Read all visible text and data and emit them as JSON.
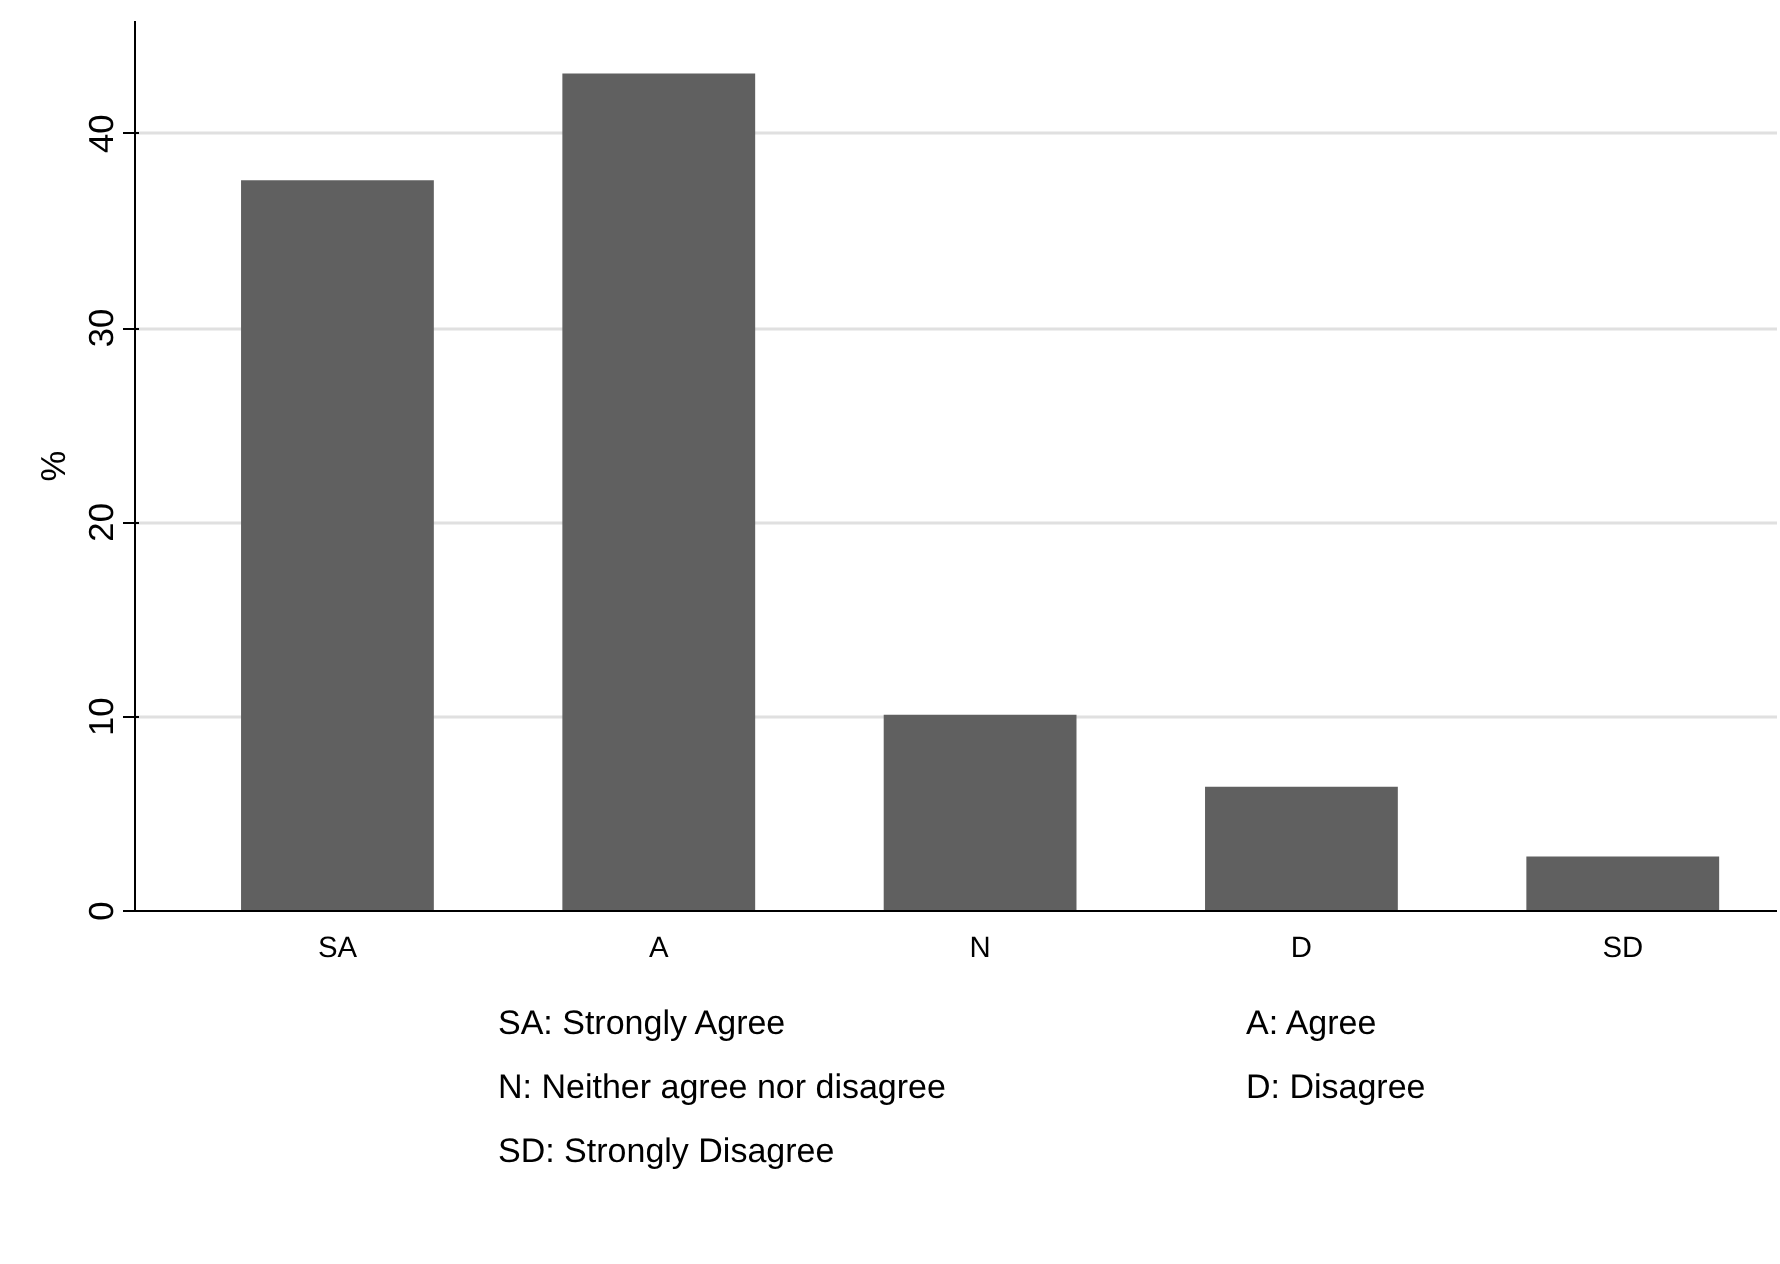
{
  "chart_data": {
    "type": "bar",
    "ylabel": "%",
    "categories": [
      "SA",
      "A",
      "N",
      "D",
      "SD"
    ],
    "values": [
      37.6,
      43.1,
      10.1,
      6.4,
      2.8
    ],
    "color": "#606060",
    "ylim": [
      0,
      45.8
    ],
    "yticks": [
      0,
      10,
      20,
      30,
      40
    ],
    "grid": "y",
    "annotations": [
      "SA: Strongly Agree",
      "A: Agree",
      "N: Neither agree nor disagree",
      "D: Disagree",
      "SD: Strongly Disagree"
    ]
  }
}
